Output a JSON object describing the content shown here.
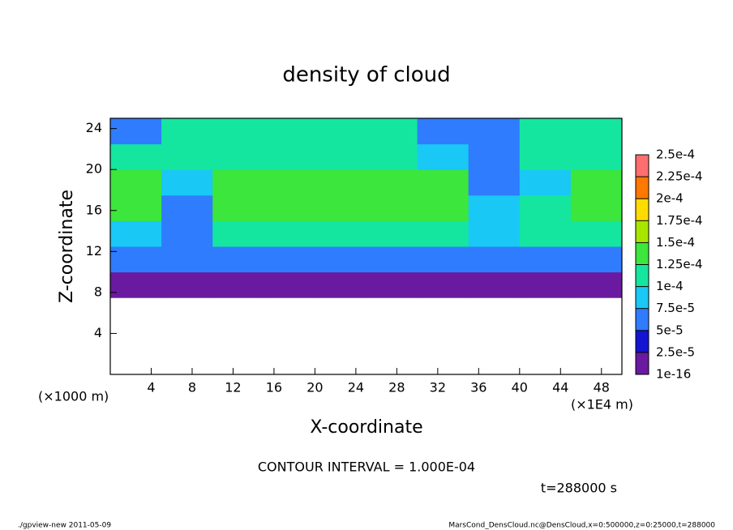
{
  "chart_data": {
    "type": "heatmap",
    "title": "density of cloud",
    "x_label": "X-coordinate",
    "y_label": "Z-coordinate",
    "x_unit": "(×1E4 m)",
    "y_unit": "(×1000 m)",
    "contour_note": "CONTOUR INTERVAL = 1.000E-04",
    "time_note": "t=288000 s",
    "footer_left": "./gpview-new  2011-05-09",
    "footer_right": "MarsCond_DensCloud.nc@DensCloud,x=0:500000,z=0:25000,t=288000",
    "xlim": [
      0,
      50
    ],
    "ylim": [
      0,
      25
    ],
    "xticks": [
      4,
      8,
      12,
      16,
      20,
      24,
      28,
      32,
      36,
      40,
      44,
      48
    ],
    "yticks": [
      4,
      8,
      12,
      16,
      20,
      24
    ],
    "x_bins": [
      0,
      5,
      10,
      15,
      20,
      25,
      30,
      35,
      40,
      45,
      50
    ],
    "z_bins": [
      0,
      2.5,
      5,
      7.5,
      10,
      12.5,
      15,
      17.5,
      20,
      22.5,
      25
    ],
    "values": [
      [
        null,
        null,
        null,
        null,
        null,
        null,
        null,
        null,
        null,
        null
      ],
      [
        null,
        null,
        null,
        null,
        null,
        null,
        null,
        null,
        null,
        null
      ],
      [
        null,
        null,
        null,
        null,
        null,
        null,
        null,
        null,
        null,
        null
      ],
      [
        1.5e-05,
        1.5e-05,
        1.5e-05,
        1.5e-05,
        1.5e-05,
        1.5e-05,
        1.5e-05,
        1.5e-05,
        1.5e-05,
        1.5e-05
      ],
      [
        7e-05,
        6e-05,
        6e-05,
        6e-05,
        6e-05,
        6e-05,
        6e-05,
        5e-05,
        6e-05,
        6e-05
      ],
      [
        9e-05,
        6e-05,
        0.000115,
        0.000115,
        0.000115,
        0.000115,
        0.000115,
        8e-05,
        0.000115,
        0.000115
      ],
      [
        0.00013,
        7e-05,
        0.00013,
        0.00013,
        0.00013,
        0.00013,
        0.00013,
        8e-05,
        0.00011,
        0.00013
      ],
      [
        0.00013,
        8e-05,
        0.00013,
        0.00013,
        0.00013,
        0.00013,
        0.00013,
        7e-05,
        9e-05,
        0.00013
      ],
      [
        0.0001,
        0.00012,
        0.00012,
        0.00012,
        0.00012,
        0.00012,
        9e-05,
        7e-05,
        0.00012,
        0.00012
      ],
      [
        5e-05,
        0.000105,
        0.000105,
        0.000105,
        0.000105,
        0.000105,
        6e-05,
        7e-05,
        0.000105,
        0.000105
      ]
    ],
    "colorbar": {
      "levels": [
        {
          "value": 1e-16,
          "label": "1e-16"
        },
        {
          "value": 2.5e-05,
          "label": "2.5e-5"
        },
        {
          "value": 5e-05,
          "label": "5e-5"
        },
        {
          "value": 7.5e-05,
          "label": "7.5e-5"
        },
        {
          "value": 0.0001,
          "label": "1e-4"
        },
        {
          "value": 0.000125,
          "label": "1.25e-4"
        },
        {
          "value": 0.00015,
          "label": "1.5e-4"
        },
        {
          "value": 0.000175,
          "label": "1.75e-4"
        },
        {
          "value": 0.0002,
          "label": "2e-4"
        },
        {
          "value": 0.000225,
          "label": "2.25e-4"
        },
        {
          "value": 0.00025,
          "label": "2.5e-4"
        }
      ],
      "colors": [
        "#6a1aa0",
        "#1414d2",
        "#2f7cff",
        "#19c8f5",
        "#14e6a0",
        "#3ce63c",
        "#a8e600",
        "#ffdc00",
        "#ff7800",
        "#ff6e6e"
      ]
    }
  }
}
